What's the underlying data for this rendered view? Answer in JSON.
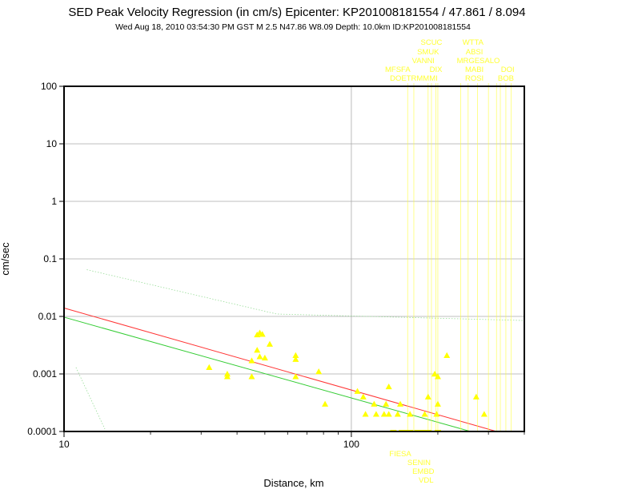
{
  "chart_data": {
    "type": "scatter",
    "title": "SED Peak Velocity Regression (in cm/s) Epicenter: KP201008181554 / 47.861 / 8.094",
    "subtitle": "Wed Aug 18, 2010 03:54:30 PM GST    M 2.5    N47.86 W8.09    Depth: 10.0km    ID:KP201008181554",
    "xlabel": "Distance, km",
    "ylabel": "cm/sec",
    "x_scale": "log",
    "y_scale": "log",
    "xlim": [
      10,
      400
    ],
    "ylim": [
      0.0001,
      100
    ],
    "x_ticks": [
      {
        "value": 10,
        "label": "10"
      },
      {
        "value": 100,
        "label": "100"
      }
    ],
    "y_ticks": [
      {
        "value": 0.0001,
        "label": "0.0001"
      },
      {
        "value": 0.001,
        "label": "0.001"
      },
      {
        "value": 0.01,
        "label": "0.01"
      },
      {
        "value": 0.1,
        "label": "0.1"
      },
      {
        "value": 1,
        "label": "1"
      },
      {
        "value": 10,
        "label": "10"
      },
      {
        "value": 100,
        "label": "100"
      }
    ],
    "grid": true,
    "colors": {
      "points": "#ffff00",
      "labels": "#ffff33",
      "red_line": "#ff3333",
      "green_line": "#33cc33",
      "dotted_line": "#99dd99",
      "grid": "#aaaaaa"
    },
    "regression_lines": [
      {
        "color": "red",
        "x": [
          10,
          320
        ],
        "y": [
          0.014,
          0.0001
        ]
      },
      {
        "color": "green",
        "x": [
          10,
          260
        ],
        "y": [
          0.0097,
          0.0001
        ]
      }
    ],
    "bound_lines": [
      {
        "style": "dotted",
        "x": [
          12,
          55,
          400
        ],
        "y": [
          0.065,
          0.011,
          0.0085
        ]
      },
      {
        "style": "dotted",
        "x": [
          11,
          14
        ],
        "y": [
          0.0013,
          0.0001
        ]
      }
    ],
    "points": [
      {
        "x": 32,
        "y": 0.0013
      },
      {
        "x": 37,
        "y": 0.001
      },
      {
        "x": 37,
        "y": 0.0009
      },
      {
        "x": 45,
        "y": 0.0017
      },
      {
        "x": 45,
        "y": 0.0009
      },
      {
        "x": 47,
        "y": 0.0026
      },
      {
        "x": 47,
        "y": 0.0048
      },
      {
        "x": 48,
        "y": 0.0052
      },
      {
        "x": 49,
        "y": 0.0049
      },
      {
        "x": 48,
        "y": 0.002
      },
      {
        "x": 50,
        "y": 0.0019
      },
      {
        "x": 52,
        "y": 0.0033
      },
      {
        "x": 64,
        "y": 0.0021
      },
      {
        "x": 64,
        "y": 0.0018
      },
      {
        "x": 64,
        "y": 0.0009
      },
      {
        "x": 77,
        "y": 0.0011
      },
      {
        "x": 81,
        "y": 0.0003
      },
      {
        "x": 105,
        "y": 0.0005
      },
      {
        "x": 110,
        "y": 0.0004
      },
      {
        "x": 112,
        "y": 0.0002
      },
      {
        "x": 120,
        "y": 0.0003
      },
      {
        "x": 122,
        "y": 0.0002
      },
      {
        "x": 130,
        "y": 0.0002
      },
      {
        "x": 132,
        "y": 0.0003
      },
      {
        "x": 135,
        "y": 0.0006
      },
      {
        "x": 135,
        "y": 0.0002
      },
      {
        "x": 145,
        "y": 0.0002
      },
      {
        "x": 148,
        "y": 0.0003
      },
      {
        "x": 160,
        "y": 0.0002
      },
      {
        "x": 180,
        "y": 0.0002
      },
      {
        "x": 185,
        "y": 0.0004
      },
      {
        "x": 195,
        "y": 0.001
      },
      {
        "x": 200,
        "y": 0.0009
      },
      {
        "x": 198,
        "y": 0.0002
      },
      {
        "x": 200,
        "y": 0.0003
      },
      {
        "x": 215,
        "y": 0.0021
      },
      {
        "x": 272,
        "y": 0.0004
      },
      {
        "x": 290,
        "y": 0.0002
      }
    ],
    "bottom_markers": {
      "y": 0.0001,
      "x": [
        140,
        150,
        155,
        160,
        170,
        175,
        180,
        185,
        200
      ]
    },
    "station_labels_top": [
      {
        "text": "SCUC",
        "x": 190,
        "row": 0
      },
      {
        "text": "WTTA",
        "x": 265,
        "row": 0
      },
      {
        "text": "SMUK",
        "x": 185,
        "row": 1
      },
      {
        "text": "ABSI",
        "x": 268,
        "row": 1
      },
      {
        "text": "VANNI",
        "x": 178,
        "row": 2
      },
      {
        "text": "MRGE",
        "x": 255,
        "row": 2
      },
      {
        "text": "SALO",
        "x": 303,
        "row": 2
      },
      {
        "text": "MFSFA",
        "x": 145,
        "row": 3
      },
      {
        "text": "DIX",
        "x": 197,
        "row": 3
      },
      {
        "text": "MABI",
        "x": 268,
        "row": 3
      },
      {
        "text": "DOI",
        "x": 350,
        "row": 3
      },
      {
        "text": "DOETRMMMI",
        "x": 165,
        "row": 4
      },
      {
        "text": "ROSI",
        "x": 268,
        "row": 4
      },
      {
        "text": "BOB",
        "x": 345,
        "row": 4
      }
    ],
    "station_labels_bottom": [
      {
        "text": "FIESA",
        "x": 148,
        "row": 0
      },
      {
        "text": "SENIN",
        "x": 172,
        "row": 1
      },
      {
        "text": "EMBD",
        "x": 178,
        "row": 2
      },
      {
        "text": "VDL",
        "x": 182,
        "row": 3
      }
    ],
    "station_leader_x": [
      157,
      165,
      185,
      190,
      197,
      200,
      240,
      255,
      275,
      300,
      320,
      330,
      345,
      360
    ]
  }
}
